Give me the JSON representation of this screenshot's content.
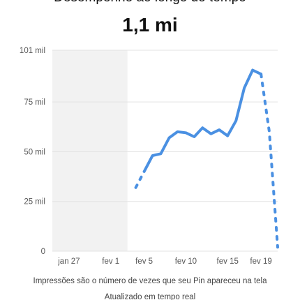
{
  "header": {
    "title": "Desempenho ao longo do tempo",
    "total_value": "1,1 mi"
  },
  "chart_data": {
    "type": "line",
    "y_tick_labels": [
      "0",
      "25 mil",
      "50 mil",
      "75 mil",
      "101 mil"
    ],
    "y_ticks": [
      0,
      25000,
      50000,
      75000,
      101000
    ],
    "ylim": [
      0,
      101000
    ],
    "x_tick_labels": [
      "jan 27",
      "fev 1",
      "fev 5",
      "fev 10",
      "fev 15",
      "fev 19"
    ],
    "x_ticks": [
      "2025-01-27",
      "2025-02-01",
      "2025-02-05",
      "2025-02-10",
      "2025-02-15",
      "2025-02-19"
    ],
    "x_range": [
      "2025-01-25",
      "2025-02-21"
    ],
    "grid": true,
    "shaded_region": {
      "from": "2025-01-25",
      "to": "2025-02-03"
    },
    "series": [
      {
        "style": "solid",
        "color": "#4a90e2",
        "x": [
          "2025-02-05",
          "2025-02-06",
          "2025-02-07",
          "2025-02-08",
          "2025-02-09",
          "2025-02-10",
          "2025-02-11",
          "2025-02-12",
          "2025-02-13",
          "2025-02-14",
          "2025-02-15",
          "2025-02-16",
          "2025-02-17",
          "2025-02-18",
          "2025-02-19"
        ],
        "y": [
          40000,
          48000,
          49000,
          57000,
          60000,
          59500,
          57500,
          62000,
          59000,
          61000,
          58000,
          65500,
          82000,
          91000,
          89000
        ]
      },
      {
        "style": "dashed",
        "color": "#4a90e2",
        "x": [
          "2025-02-04",
          "2025-02-05"
        ],
        "y": [
          32000,
          40000
        ]
      },
      {
        "style": "dashed",
        "color": "#4a90e2",
        "x": [
          "2025-02-19",
          "2025-02-20",
          "2025-02-21"
        ],
        "y": [
          89000,
          60000,
          2000
        ]
      }
    ]
  },
  "footer": {
    "note": "Impressões são o número de vezes que seu Pin apareceu na tela",
    "updated": "Atualizado em tempo real"
  }
}
